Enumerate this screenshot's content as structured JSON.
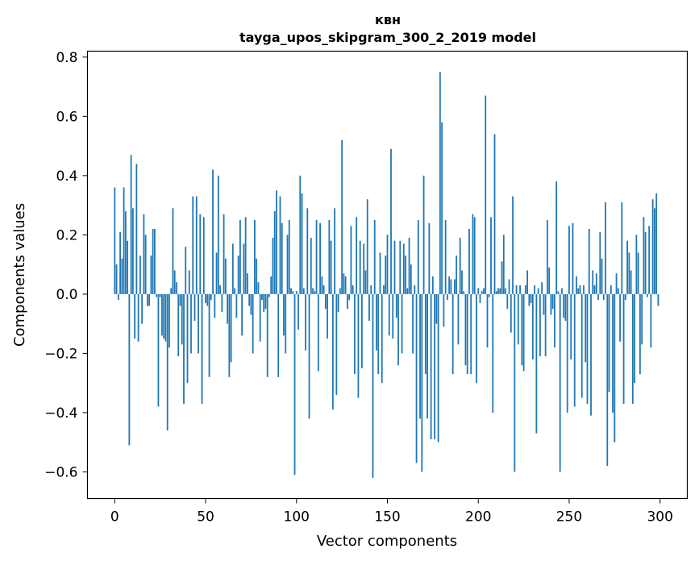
{
  "chart_data": {
    "type": "bar",
    "title": "квн",
    "subtitle": "tayga_upos_skipgram_300_2_2019 model",
    "xlabel": "Vector components",
    "ylabel": "Components values",
    "xlim": [
      -15,
      315
    ],
    "ylim": [
      -0.69,
      0.82
    ],
    "x_ticks": [
      0,
      50,
      100,
      150,
      200,
      250,
      300
    ],
    "x_tick_labels": [
      "0",
      "50",
      "100",
      "150",
      "200",
      "250",
      "300"
    ],
    "y_ticks": [
      -0.6,
      -0.4,
      -0.2,
      0.0,
      0.2,
      0.4,
      0.6,
      0.8
    ],
    "y_tick_labels": [
      "−0.6",
      "−0.4",
      "−0.2",
      "0.0",
      "0.2",
      "0.4",
      "0.6",
      "0.8"
    ],
    "bar_color": "#1f77b4",
    "grid": false,
    "values": [
      0.36,
      0.1,
      -0.02,
      0.21,
      0.12,
      0.36,
      0.28,
      0.18,
      -0.51,
      0.47,
      0.29,
      -0.15,
      0.44,
      -0.16,
      0.13,
      -0.1,
      0.27,
      0.2,
      -0.04,
      -0.04,
      0.13,
      0.22,
      0.22,
      -0.01,
      -0.38,
      -0.01,
      -0.14,
      -0.15,
      -0.16,
      -0.46,
      -0.18,
      0.02,
      0.29,
      0.08,
      0.04,
      -0.21,
      -0.04,
      -0.17,
      -0.37,
      0.16,
      -0.3,
      0.08,
      -0.2,
      0.33,
      -0.09,
      0.33,
      -0.2,
      0.27,
      -0.37,
      0.26,
      -0.03,
      -0.04,
      -0.28,
      -0.02,
      0.42,
      -0.08,
      0.14,
      0.4,
      0.03,
      -0.06,
      0.27,
      0.12,
      -0.1,
      -0.28,
      -0.23,
      0.17,
      0.02,
      -0.08,
      0.13,
      0.25,
      -0.14,
      0.17,
      0.26,
      0.07,
      -0.04,
      -0.07,
      -0.2,
      0.25,
      0.12,
      0.04,
      -0.16,
      -0.02,
      -0.06,
      -0.05,
      -0.28,
      -0.01,
      0.06,
      0.19,
      0.28,
      0.35,
      -0.28,
      0.33,
      0.24,
      -0.14,
      -0.2,
      0.2,
      0.25,
      0.02,
      0.01,
      -0.61,
      0.01,
      -0.12,
      0.4,
      0.34,
      0.02,
      -0.19,
      0.29,
      -0.42,
      0.19,
      0.02,
      0.01,
      0.25,
      -0.26,
      0.24,
      0.06,
      0.03,
      -0.05,
      -0.15,
      0.25,
      0.18,
      -0.39,
      0.29,
      -0.34,
      -0.06,
      0.02,
      0.52,
      0.07,
      0.06,
      -0.05,
      -0.02,
      0.23,
      0.03,
      -0.27,
      0.26,
      -0.35,
      0.18,
      -0.25,
      0.17,
      0.08,
      0.32,
      -0.09,
      0.03,
      -0.62,
      0.25,
      -0.19,
      -0.27,
      0.14,
      -0.3,
      0.03,
      0.13,
      0.2,
      -0.14,
      0.49,
      -0.15,
      0.18,
      -0.08,
      -0.24,
      0.18,
      -0.2,
      0.17,
      0.13,
      0.02,
      0.19,
      0.1,
      -0.2,
      0.03,
      -0.57,
      0.25,
      -0.42,
      -0.6,
      0.4,
      -0.27,
      -0.42,
      0.24,
      -0.49,
      0.06,
      -0.49,
      -0.1,
      -0.5,
      0.75,
      0.58,
      -0.11,
      0.25,
      -0.02,
      0.06,
      0.05,
      -0.27,
      0.05,
      0.13,
      -0.17,
      0.19,
      0.08,
      0.01,
      -0.24,
      -0.27,
      0.22,
      -0.27,
      0.27,
      0.26,
      -0.3,
      0.02,
      -0.03,
      0.01,
      0.02,
      0.67,
      -0.18,
      -0.01,
      0.26,
      -0.4,
      0.54,
      0.01,
      0.02,
      0.02,
      0.11,
      0.2,
      0.02,
      -0.05,
      0.05,
      -0.13,
      0.33,
      -0.6,
      0.03,
      -0.17,
      0.03,
      -0.24,
      -0.26,
      0.03,
      0.08,
      -0.04,
      -0.03,
      -0.22,
      0.03,
      -0.47,
      0.02,
      -0.21,
      0.04,
      -0.07,
      -0.21,
      0.25,
      0.09,
      -0.07,
      -0.05,
      -0.18,
      0.38,
      0.01,
      -0.6,
      0.02,
      -0.08,
      -0.09,
      -0.4,
      0.23,
      -0.22,
      0.24,
      -0.38,
      0.06,
      0.02,
      0.03,
      -0.35,
      0.03,
      -0.23,
      -0.37,
      0.22,
      -0.41,
      0.08,
      0.03,
      0.07,
      -0.02,
      0.21,
      0.12,
      -0.02,
      0.31,
      -0.58,
      -0.33,
      0.03,
      -0.4,
      -0.5,
      0.07,
      0.02,
      -0.16,
      0.31,
      -0.37,
      -0.02,
      0.18,
      0.14,
      0.08,
      -0.37,
      -0.3,
      0.2,
      0.14,
      -0.27,
      -0.17,
      0.26,
      0.21,
      -0.01,
      0.23,
      -0.18,
      0.32,
      0.29,
      0.34,
      -0.04
    ]
  }
}
